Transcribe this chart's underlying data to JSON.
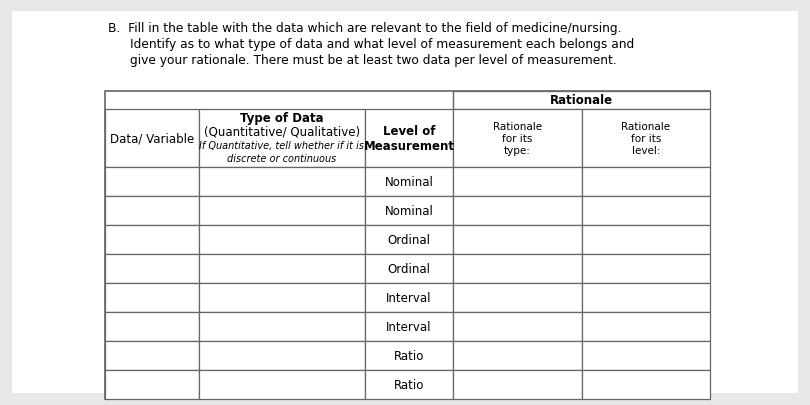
{
  "title_line1": "B.  Fill in the table with the data which are relevant to the field of medicine/nursing.",
  "title_line2": "Identify as to what type of data and what level of measurement each belongs and",
  "title_line3": "give your rationale. There must be at least two data per level of measurement.",
  "bg_color": "#e8e8e8",
  "table_bg": "#ffffff",
  "border_color": "#666666",
  "text_color": "#000000",
  "level_labels": [
    "Nominal",
    "Nominal",
    "Ordinal",
    "Ordinal",
    "Interval",
    "Interval",
    "Ratio",
    "Ratio"
  ],
  "num_data_rows": 8,
  "rationale_header": "Rationale",
  "font_size_title": 8.8,
  "font_size_header_main": 8.5,
  "font_size_header_small": 7.0,
  "font_size_cell": 8.5
}
